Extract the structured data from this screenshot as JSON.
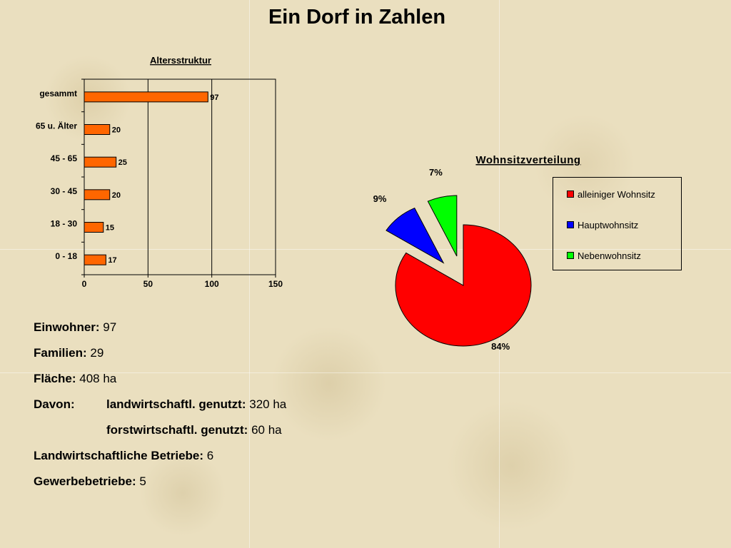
{
  "title": "Ein Dorf in Zahlen",
  "chart_data": [
    {
      "type": "bar",
      "orientation": "horizontal",
      "title": "Altersstruktur",
      "categories": [
        "gesammt",
        "65 u. Älter",
        "45 - 65",
        "30 - 45",
        "18 - 30",
        "0 - 18"
      ],
      "values": [
        97,
        20,
        25,
        20,
        15,
        17
      ],
      "xlim": [
        0,
        150
      ],
      "xticks": [
        "0",
        "50",
        "100",
        "150"
      ],
      "grid": "vertical",
      "bar_color": "#ff6600"
    },
    {
      "type": "pie",
      "title": "Wohnsitzverteilung",
      "labels": [
        "alleiniger Wohnsitz",
        "Hauptwohnsitz",
        "Nebenwohnsitz"
      ],
      "values": [
        84,
        9,
        7
      ],
      "value_labels": [
        "84%",
        "9%",
        "7%"
      ],
      "colors": [
        "#ff0000",
        "#0000ff",
        "#00ff00"
      ],
      "exploded": [
        "Hauptwohnsitz",
        "Nebenwohnsitz"
      ],
      "legend_position": "right"
    }
  ],
  "facts": {
    "einwohner": {
      "label": "Einwohner:",
      "value": "97"
    },
    "familien": {
      "label": "Familien:",
      "value": "29"
    },
    "flaeche": {
      "label": "Fläche:",
      "value": "408 ha"
    },
    "davon_label": "Davon:",
    "landwirtschaftl": {
      "label": "landwirtschaftl. genutzt:",
      "value": "320 ha"
    },
    "forstwirtschaftl": {
      "label": "forstwirtschaftl. genutzt:",
      "value": "60 ha"
    },
    "betriebe": {
      "label": "Landwirtschaftliche Betriebe:",
      "value": "6"
    },
    "gewerbe": {
      "label": "Gewerbebetriebe:",
      "value": "5"
    }
  }
}
